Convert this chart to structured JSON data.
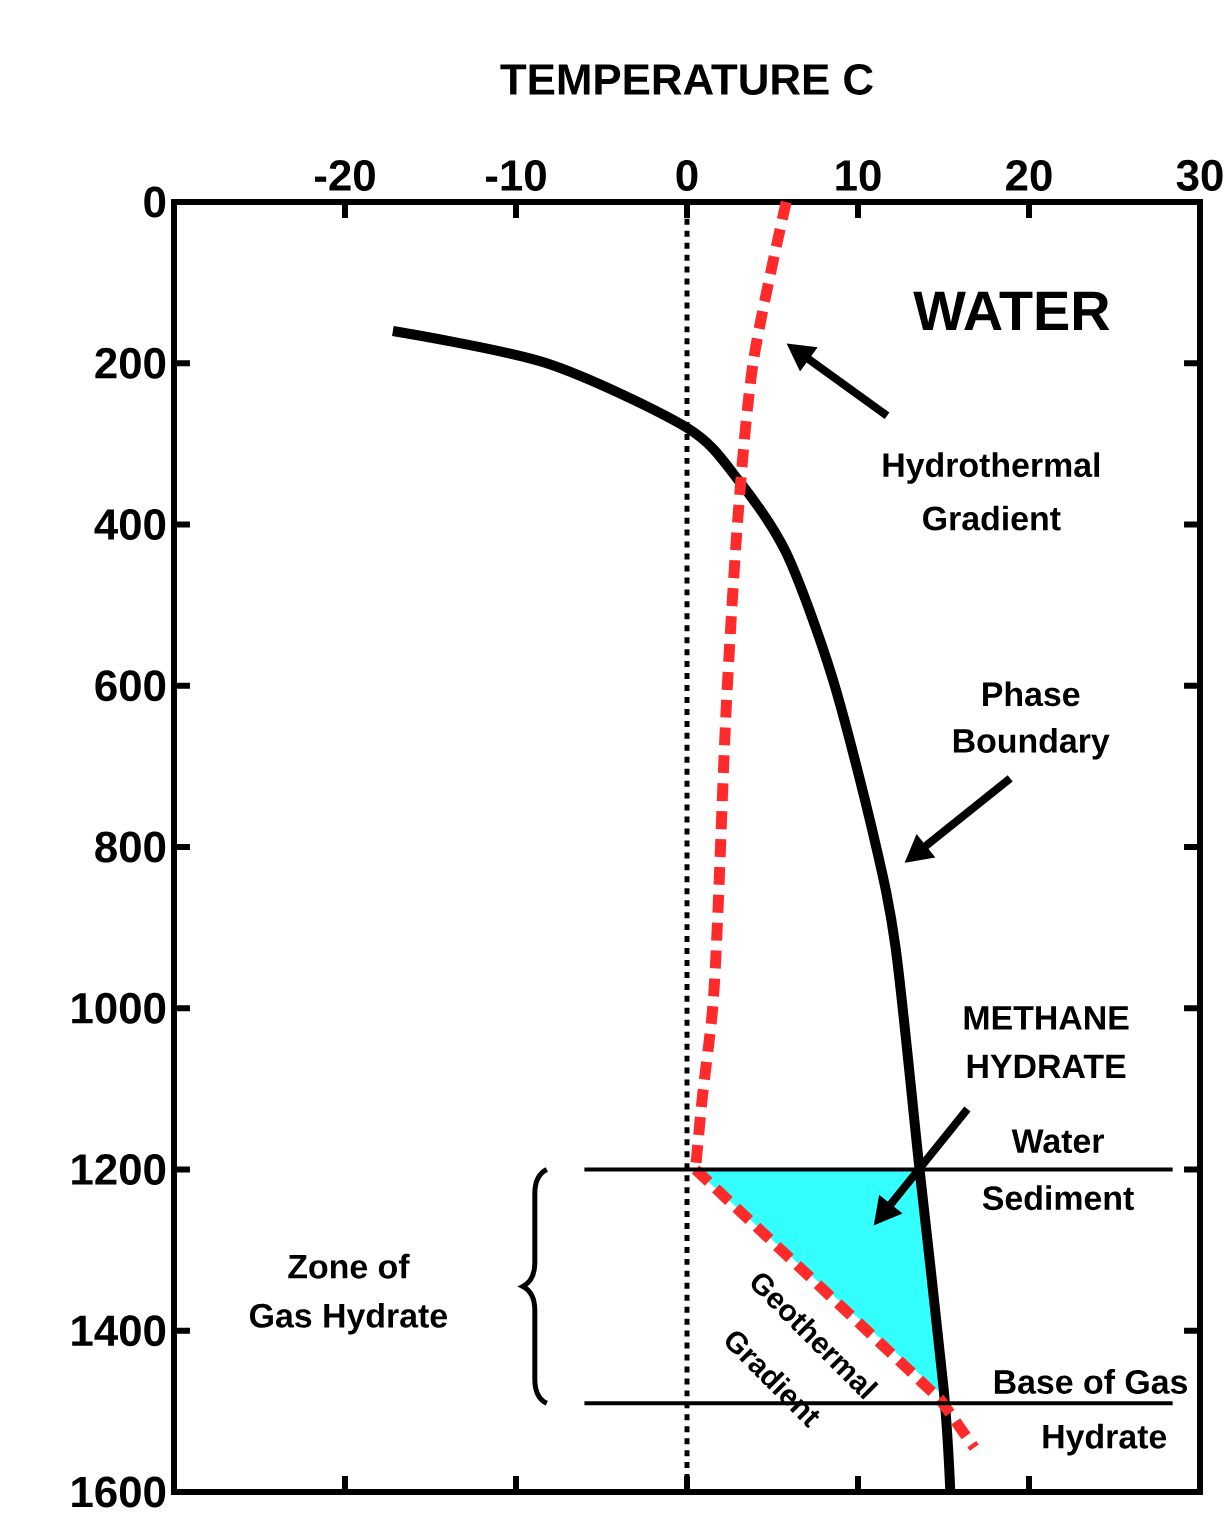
{
  "chart_data": {
    "type": "line",
    "xlabel": "TEMPERATURE C",
    "xlim": [
      -30,
      30
    ],
    "xticks": [
      -20,
      -10,
      0,
      10,
      20,
      30
    ],
    "ylim": [
      1600,
      0
    ],
    "yticks": [
      0,
      200,
      400,
      600,
      800,
      1000,
      1200,
      1400,
      1600
    ],
    "grid": false,
    "marker": "none",
    "series": [
      {
        "type": "area",
        "color": "#33ffff",
        "x": [
          0.5,
          13.6,
          15.0
        ],
        "values": [
          1200,
          1200,
          1480
        ]
      },
      {
        "color": "#000000",
        "line_style": "solid",
        "x": [
          -17.2,
          -8.2,
          0,
          3.0,
          5.8,
          8.5,
          10.9,
          12.2,
          13.6,
          15.0,
          15.4
        ],
        "values": [
          160,
          200,
          280,
          345,
          435,
          590,
          785,
          925,
          1200,
          1470,
          1600
        ]
      },
      {
        "color": "#ff2a2a",
        "line_style": "dashed",
        "x": [
          5.8,
          3.9,
          3.0,
          2.3,
          1.8,
          1.5,
          0.9,
          0.5
        ],
        "values": [
          0,
          195,
          385,
          625,
          885,
          1000,
          1110,
          1200
        ]
      },
      {
        "color": "#ff2a2a",
        "line_style": "dashed",
        "x": [
          0.5,
          14.8,
          16.8
        ],
        "values": [
          1200,
          1485,
          1545
        ]
      },
      {
        "color": "#000000",
        "line_style": "solid",
        "x": [
          -6,
          28.4
        ],
        "values": [
          1200,
          1200
        ]
      },
      {
        "color": "#000000",
        "line_style": "solid",
        "x": [
          -6,
          28.4
        ],
        "values": [
          1490,
          1490
        ]
      }
    ],
    "ref_lines": [
      {
        "axis": "x",
        "value": 0,
        "color": "#000000",
        "line_style": "dotted"
      }
    ],
    "annotations": [
      "WATER",
      "Hydrothermal",
      "Gradient",
      "Phase",
      "Boundary",
      "METHANE",
      "HYDRATE",
      "Water",
      "Sediment",
      "Zone of",
      "Gas Hydrate",
      "Geothermal",
      "Gradient",
      "Base of Gas",
      "Hydrate"
    ]
  }
}
